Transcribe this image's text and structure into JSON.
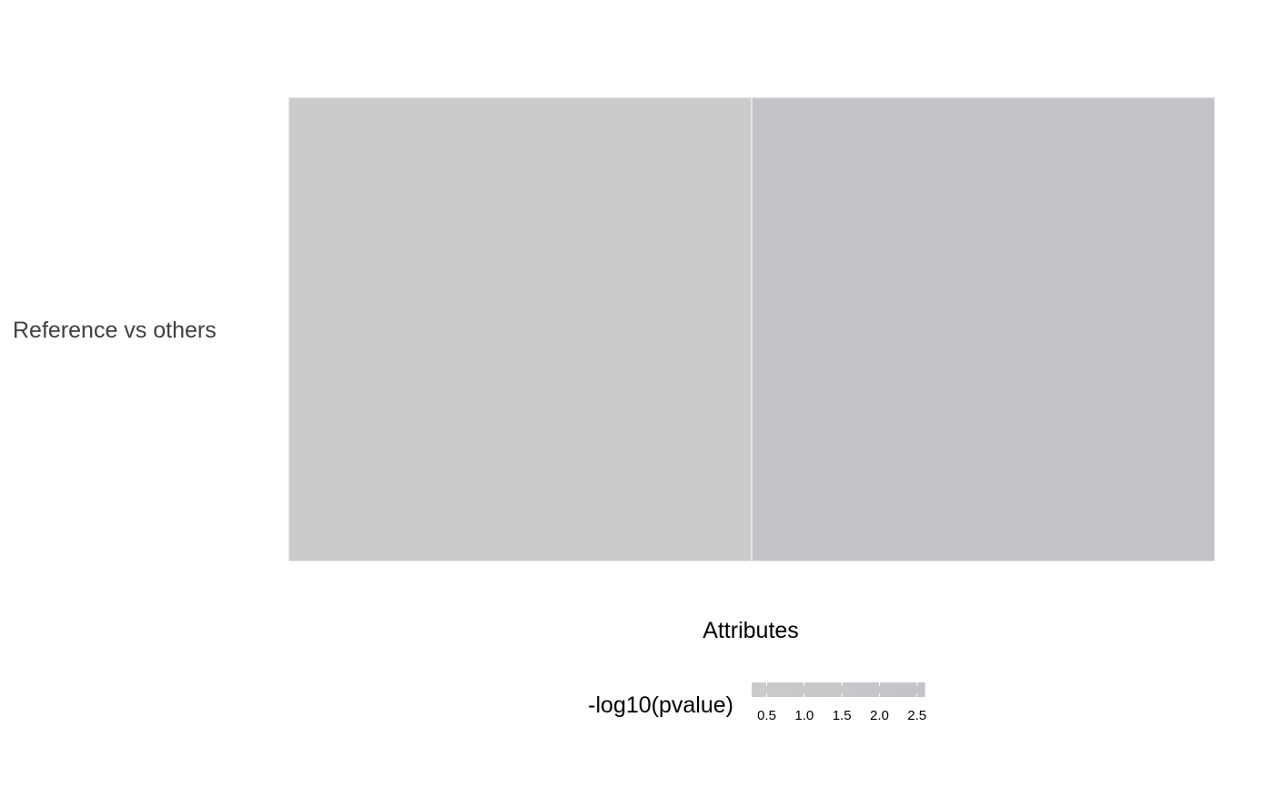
{
  "chart_data": {
    "type": "heatmap",
    "title": "",
    "xlabel": "Attributes",
    "ylabel": "",
    "rows": [
      "Reference vs others"
    ],
    "columns": [
      "",
      ""
    ],
    "values": [
      [
        0.3,
        2.6
      ]
    ],
    "legend": {
      "title": "-log10(pvalue)",
      "range": [
        0.3,
        2.6
      ],
      "ticks": [
        "0.5",
        "1.0",
        "1.5",
        "2.0",
        "2.5"
      ],
      "tick_values": [
        0.5,
        1.0,
        1.5,
        2.0,
        2.5
      ],
      "placement": "bottom",
      "color_low": "#cbcbcb",
      "color_high": "#c5c3c9"
    },
    "grid": false
  }
}
